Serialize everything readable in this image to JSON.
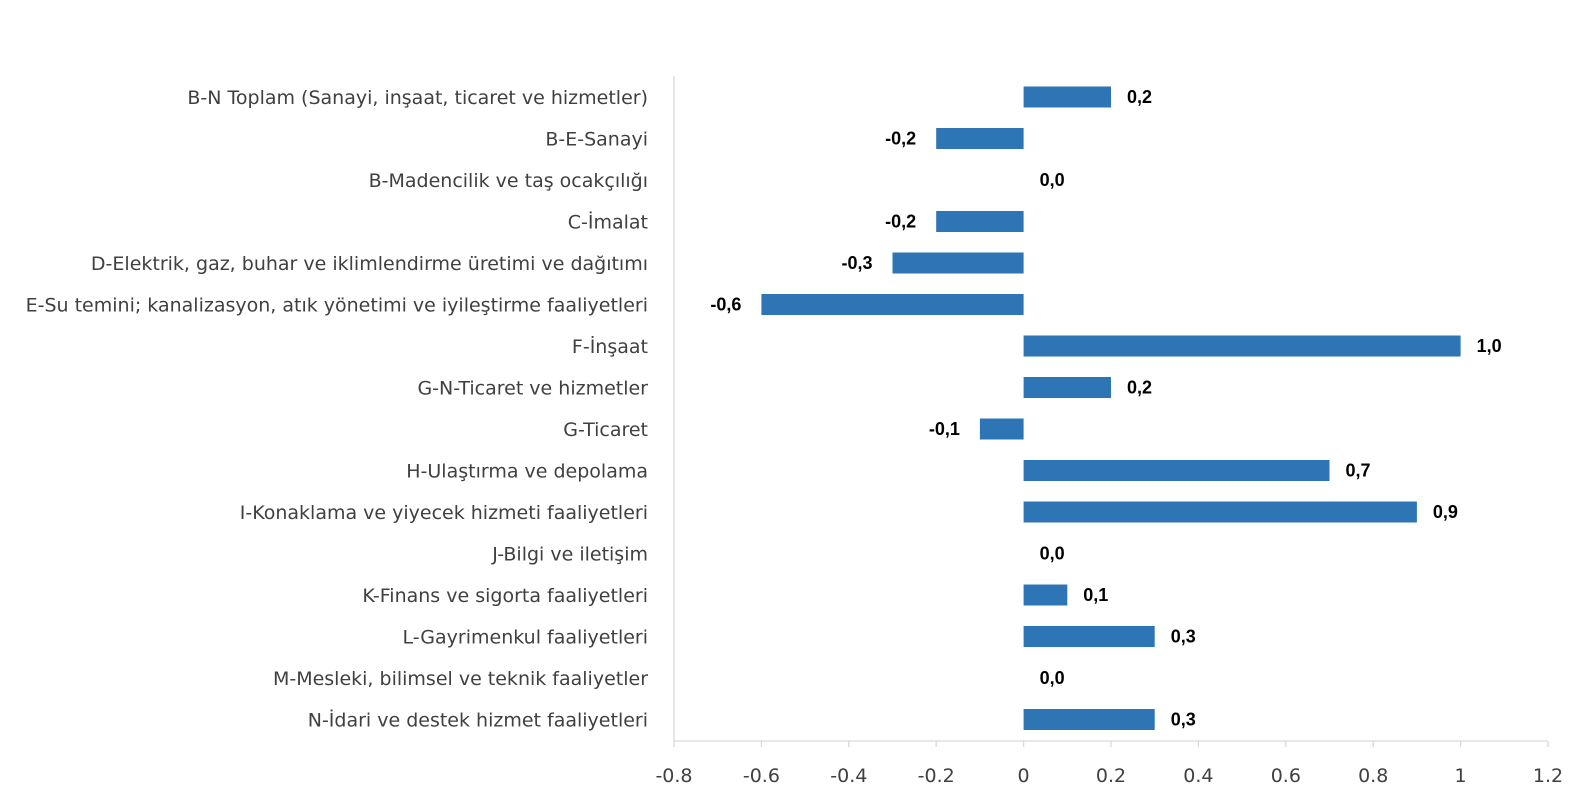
{
  "chart_data": {
    "type": "bar",
    "orientation": "horizontal",
    "title": "",
    "xlabel": "",
    "ylabel": "",
    "categories": [
      "B-N Toplam (Sanayi, inşaat, ticaret ve hizmetler)",
      "B-E-Sanayi",
      "B-Madencilik ve taş ocakçılığı",
      "C-İmalat",
      "D-Elektrik, gaz, buhar ve iklimlendirme üretimi ve dağıtımı",
      "E-Su temini; kanalizasyon, atık yönetimi ve iyileştirme faaliyetleri",
      "F-İnşaat",
      "G-N-Ticaret ve hizmetler",
      "G-Ticaret",
      "H-Ulaştırma ve depolama",
      "I-Konaklama ve yiyecek hizmeti faaliyetleri",
      "J-Bilgi ve iletişim",
      "K-Finans ve sigorta faaliyetleri",
      "L-Gayrimenkul faaliyetleri",
      "M-Mesleki, bilimsel ve teknik faaliyetler",
      "N-İdari ve destek hizmet faaliyetleri"
    ],
    "values": [
      0.2,
      -0.2,
      0.0,
      -0.2,
      -0.3,
      -0.6,
      1.0,
      0.2,
      -0.1,
      0.7,
      0.9,
      0.0,
      0.1,
      0.3,
      0.0,
      0.3
    ],
    "data_labels": [
      "0,2",
      "-0,2",
      "0,0",
      "-0,2",
      "-0,3",
      "-0,6",
      "1,0",
      "0,2",
      "-0,1",
      "0,7",
      "0,9",
      "0,0",
      "0,1",
      "0,3",
      "0,0",
      "0,3"
    ],
    "xlim": [
      -0.8,
      1.2
    ],
    "x_ticks": [
      -0.8,
      -0.6,
      -0.4,
      -0.2,
      0,
      0.2,
      0.4,
      0.6,
      0.8,
      1,
      1.2
    ],
    "x_tick_labels": [
      "-0.8",
      "-0.6",
      "-0.4",
      "-0.2",
      "0",
      "0.2",
      "0.4",
      "0.6",
      "0.8",
      "1",
      "1.2"
    ],
    "grid": false,
    "legend": "none",
    "bar_color": "#2e75b6"
  }
}
